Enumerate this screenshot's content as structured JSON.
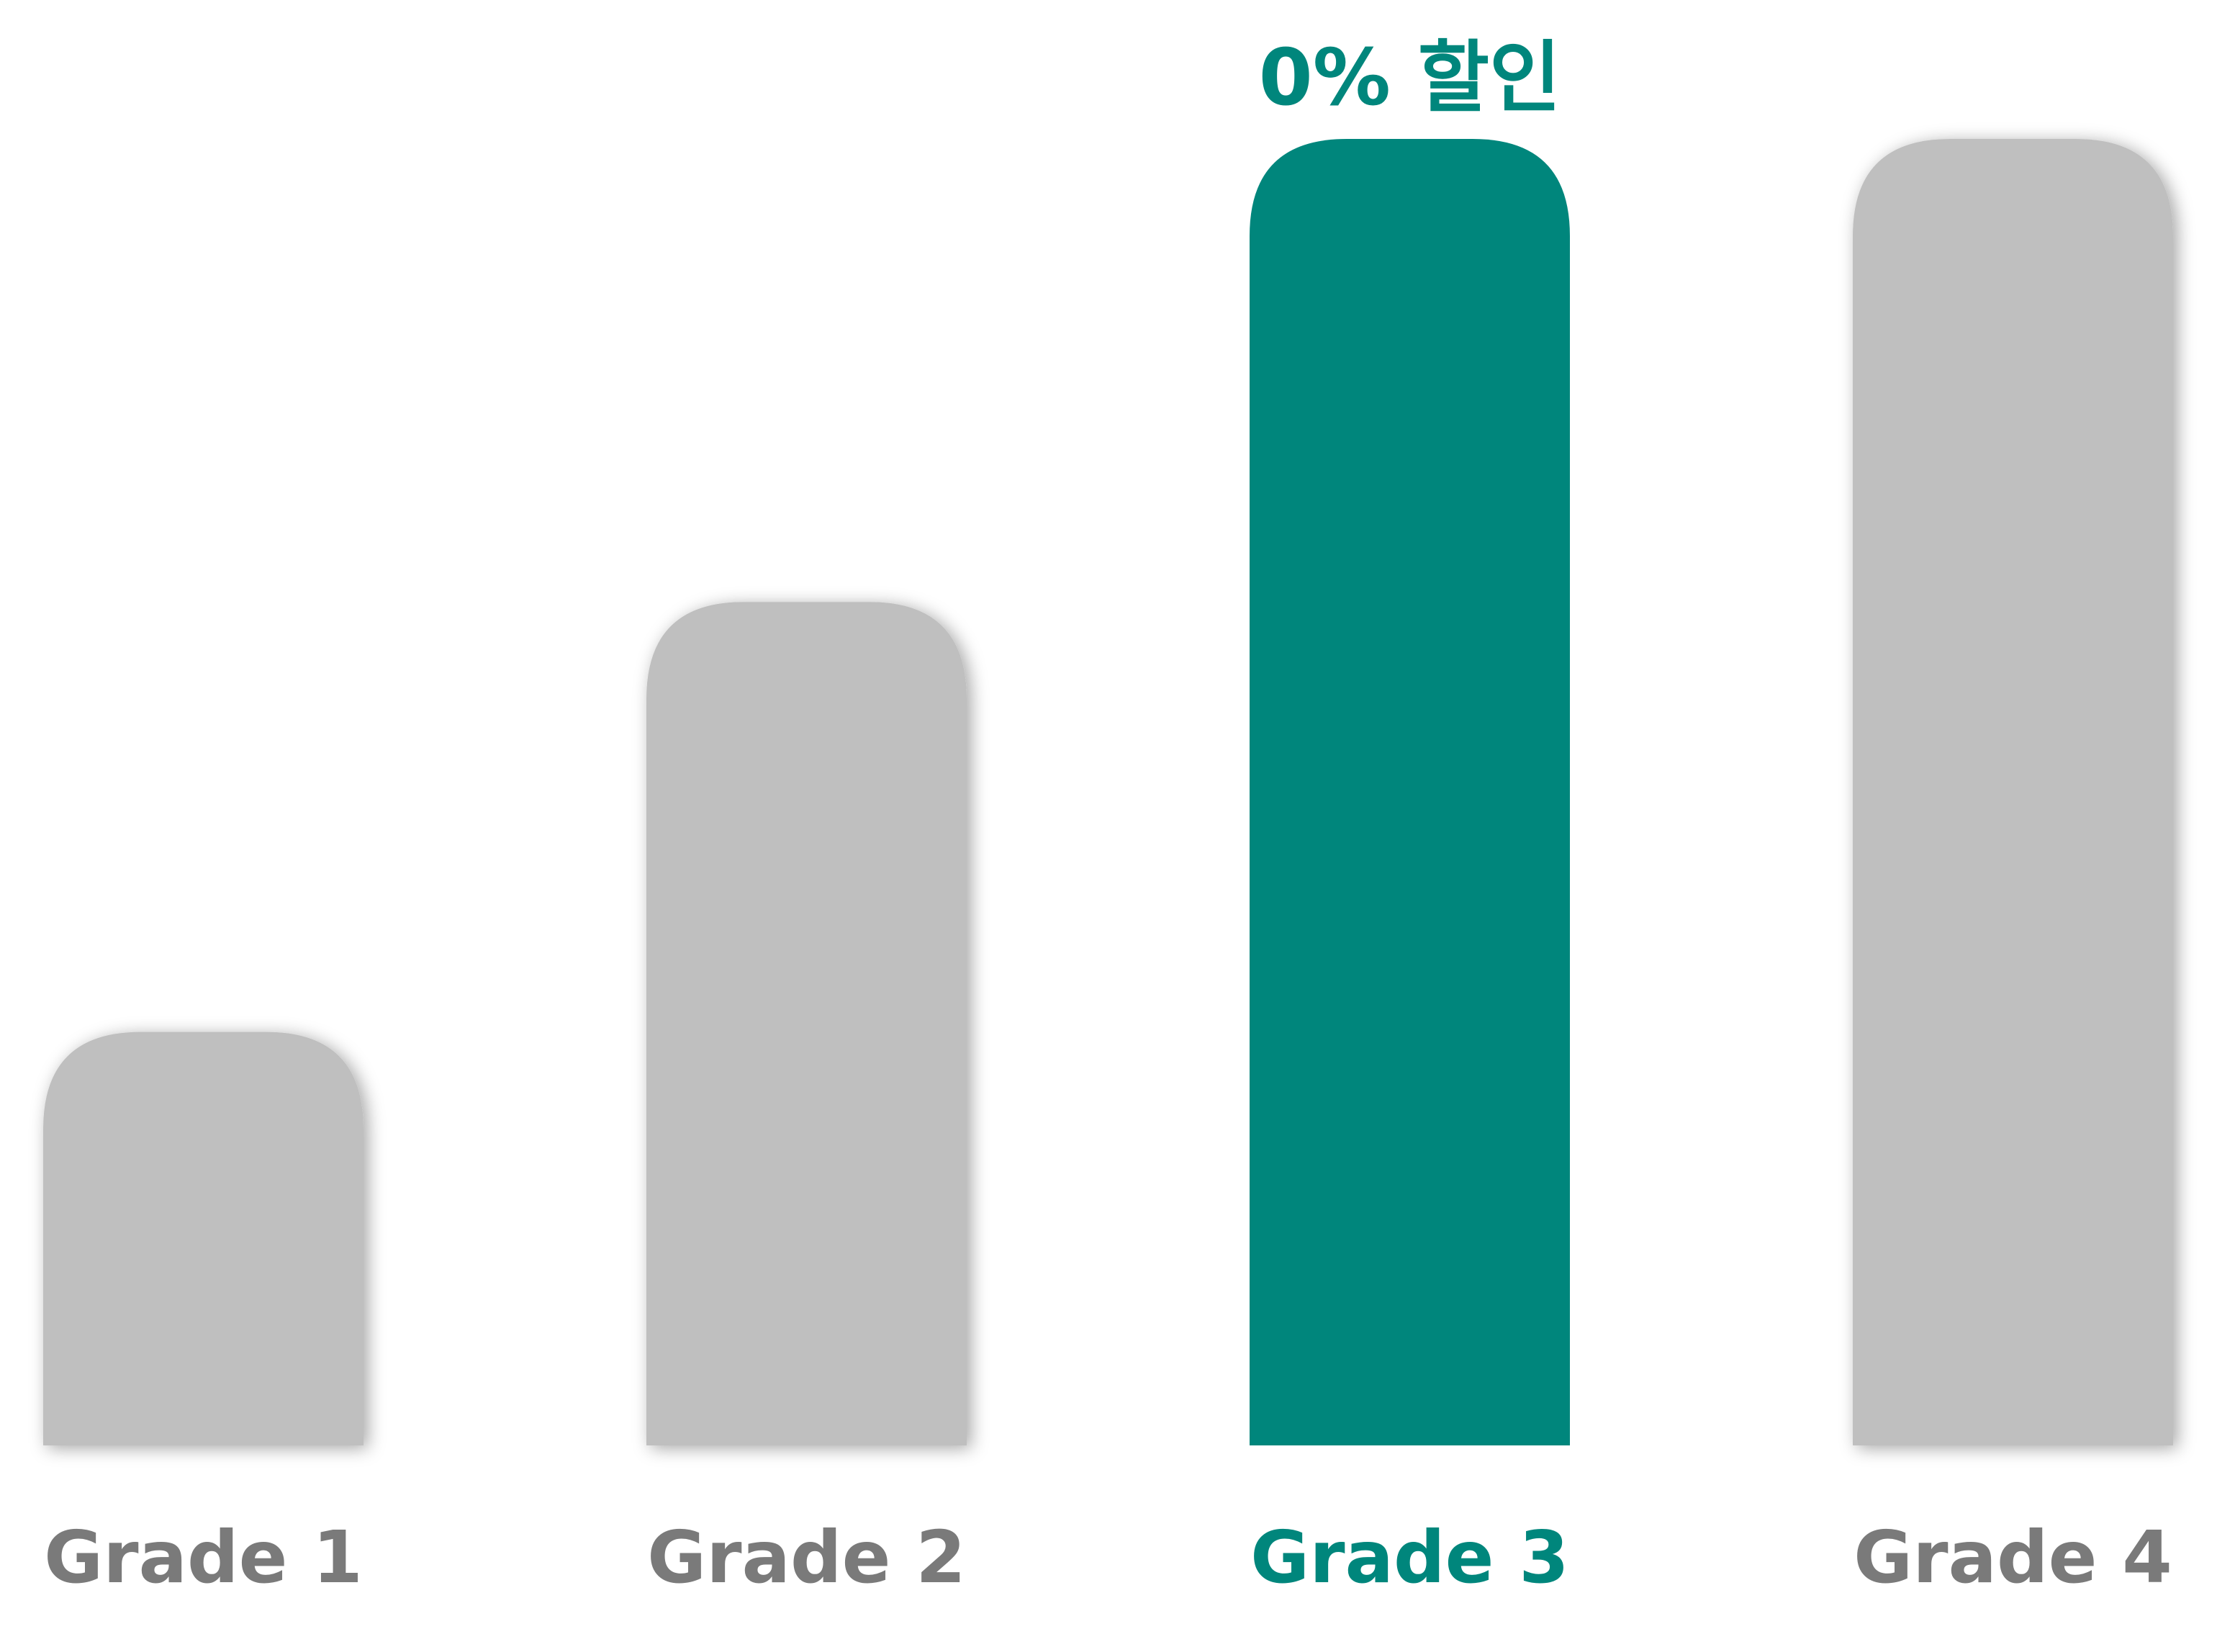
{
  "chart_data": {
    "type": "bar",
    "title": "",
    "xlabel": "",
    "ylabel": "",
    "categories": [
      "Grade 1",
      "Grade 2",
      "Grade 3",
      "Grade 4"
    ],
    "values": [
      25,
      51,
      79,
      79
    ],
    "ylim": [
      0,
      79
    ],
    "grid": false,
    "legend": "none",
    "highlight_index": 2,
    "annotation": {
      "category": "Grade 3",
      "text": "0% 할인"
    },
    "colors": {
      "default_bar": "#bfbfbf",
      "highlight_bar": "#00867c",
      "default_label": "#7a7a7a",
      "highlight_label": "#00867c",
      "annotation": "#00867c",
      "background": "#ffffff"
    }
  }
}
